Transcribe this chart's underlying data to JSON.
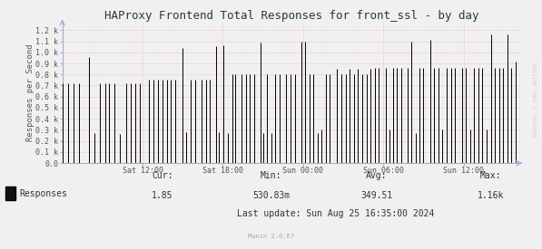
{
  "title": "HAProxy Frontend Total Responses for front_ssl - by day",
  "ylabel": "Responses per Second",
  "background_color": "#f0f0f0",
  "plot_bg_color": "#f0f0f0",
  "grid_color": "#ff9999",
  "line_color": "#000000",
  "axis_color": "#aaaacc",
  "ytick_labels": [
    "0.0",
    "0.1 k",
    "0.2 k",
    "0.3 k",
    "0.4 k",
    "0.5 k",
    "0.6 k",
    "0.7 k",
    "0.8 k",
    "0.9 k",
    "1.0 k",
    "1.1 k",
    "1.2 k"
  ],
  "ytick_values": [
    0,
    100,
    200,
    300,
    400,
    500,
    600,
    700,
    800,
    900,
    1000,
    1100,
    1200
  ],
  "ylim": [
    0,
    1270
  ],
  "xtick_labels": [
    "Sat 12:00",
    "Sat 18:00",
    "Sun 00:00",
    "Sun 06:00",
    "Sun 12:00"
  ],
  "tick_positions": [
    21600,
    43200,
    64800,
    86400,
    108000
  ],
  "x_min": 0,
  "x_max": 123300,
  "legend_label": "Responses",
  "cur_val": "1.85",
  "min_val": "530.83m",
  "avg_val": "349.51",
  "max_val": "1.16k",
  "last_update": "Last update: Sun Aug 25 16:35:00 2024",
  "munin_version": "Munin 2.0.67",
  "watermark": "RRDTOOL / TOBI OETIKER",
  "title_fontsize": 9,
  "axis_fontsize": 6.5,
  "tick_fontsize": 6,
  "stats_fontsize": 7,
  "bar_pairs": [
    [
      0,
      720
    ],
    [
      20,
      720
    ],
    [
      40,
      720
    ],
    [
      60,
      720
    ],
    [
      80,
      0
    ],
    [
      95,
      960
    ],
    [
      115,
      270
    ],
    [
      135,
      720
    ],
    [
      155,
      720
    ],
    [
      170,
      720
    ],
    [
      190,
      720
    ],
    [
      210,
      260
    ],
    [
      230,
      720
    ],
    [
      248,
      720
    ],
    [
      265,
      720
    ],
    [
      282,
      720
    ],
    [
      300,
      0
    ],
    [
      315,
      750
    ],
    [
      330,
      750
    ],
    [
      348,
      750
    ],
    [
      363,
      750
    ],
    [
      378,
      750
    ],
    [
      393,
      750
    ],
    [
      408,
      750
    ],
    [
      425,
      0
    ],
    [
      435,
      1040
    ],
    [
      450,
      280
    ],
    [
      465,
      750
    ],
    [
      480,
      750
    ],
    [
      495,
      0
    ],
    [
      505,
      750
    ],
    [
      520,
      750
    ],
    [
      535,
      750
    ],
    [
      550,
      0
    ],
    [
      558,
      1055
    ],
    [
      568,
      280
    ],
    [
      585,
      1060
    ],
    [
      600,
      270
    ],
    [
      615,
      800
    ],
    [
      625,
      800
    ],
    [
      640,
      0
    ],
    [
      650,
      800
    ],
    [
      665,
      800
    ],
    [
      680,
      800
    ],
    [
      695,
      800
    ],
    [
      710,
      0
    ],
    [
      718,
      1090
    ],
    [
      730,
      270
    ],
    [
      743,
      800
    ],
    [
      758,
      270
    ],
    [
      772,
      800
    ],
    [
      787,
      800
    ],
    [
      802,
      0
    ],
    [
      812,
      800
    ],
    [
      827,
      800
    ],
    [
      842,
      800
    ],
    [
      857,
      0
    ],
    [
      865,
      1100
    ],
    [
      880,
      1100
    ],
    [
      895,
      800
    ],
    [
      910,
      800
    ],
    [
      925,
      270
    ],
    [
      940,
      300
    ],
    [
      955,
      800
    ],
    [
      970,
      800
    ],
    [
      985,
      0
    ],
    [
      995,
      850
    ],
    [
      1012,
      800
    ],
    [
      1028,
      800
    ],
    [
      1042,
      850
    ],
    [
      1057,
      800
    ],
    [
      1072,
      850
    ],
    [
      1087,
      800
    ],
    [
      1102,
      800
    ],
    [
      1117,
      850
    ],
    [
      1132,
      860
    ],
    [
      1147,
      860
    ],
    [
      1162,
      0
    ],
    [
      1172,
      860
    ],
    [
      1185,
      300
    ],
    [
      1198,
      860
    ],
    [
      1213,
      860
    ],
    [
      1228,
      860
    ],
    [
      1243,
      0
    ],
    [
      1253,
      860
    ],
    [
      1265,
      1100
    ],
    [
      1280,
      270
    ],
    [
      1293,
      860
    ],
    [
      1308,
      860
    ],
    [
      1323,
      0
    ],
    [
      1333,
      1110
    ],
    [
      1348,
      860
    ],
    [
      1363,
      860
    ],
    [
      1378,
      300
    ],
    [
      1393,
      860
    ],
    [
      1408,
      860
    ],
    [
      1423,
      860
    ],
    [
      1438,
      0
    ],
    [
      1448,
      860
    ],
    [
      1463,
      860
    ],
    [
      1478,
      300
    ],
    [
      1493,
      860
    ],
    [
      1508,
      860
    ],
    [
      1523,
      860
    ],
    [
      1538,
      300
    ],
    [
      1553,
      1160
    ],
    [
      1568,
      860
    ],
    [
      1583,
      860
    ],
    [
      1598,
      860
    ],
    [
      1613,
      1160
    ],
    [
      1628,
      860
    ],
    [
      1643,
      920
    ]
  ],
  "pixel_range": 1660
}
